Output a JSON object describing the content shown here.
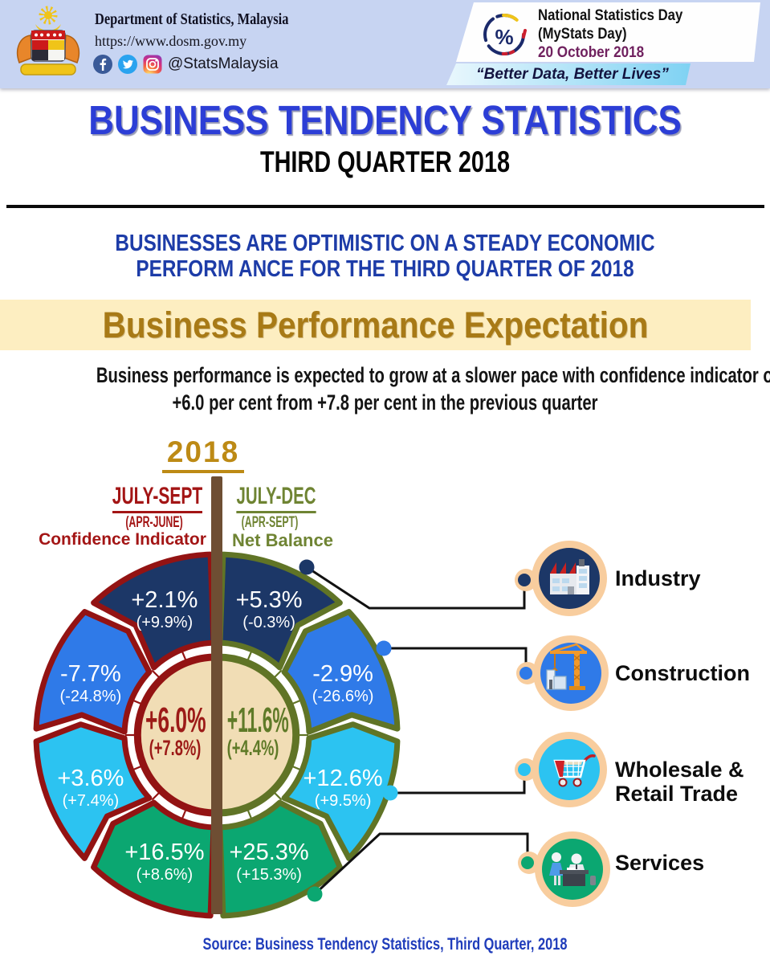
{
  "palette": {
    "header_bg": "#c7d4f2",
    "title_blue": "#2c3ed6",
    "headline_blue": "#1d3ca8",
    "banner_bg": "#fdeec1",
    "banner_gold": "#a87a16",
    "year_gold": "#bd8a15",
    "divider_brown": "#6e4e33",
    "badge_ring_peach": "#f8cd9e",
    "source_blue": "#203dbb"
  },
  "header": {
    "org_name": "Department of Statistics, Malaysia",
    "website": "https://www.dosm.gov.my",
    "social_handle": "@StatsMalaysia",
    "event_name_line1": "National Statistics Day",
    "event_name_line2": "(MyStats Day)",
    "event_date": "20 October 2018",
    "event_slogan": "“Better Data, Better Lives”"
  },
  "title": {
    "main": "BUSINESS TENDENCY STATISTICS",
    "sub": "THIRD QUARTER 2018"
  },
  "headline": {
    "line1": "BUSINESSES ARE OPTIMISTIC ON A STEADY ECONOMIC",
    "line2": "PERFORM ANCE FOR THE THIRD QUARTER OF 2018"
  },
  "section_title": "Business Performance Expectation",
  "summary": {
    "line1": "Business performance is expected to grow at a slower pace with confidence indicator of",
    "line2": "+6.0 per cent from +7.8 per cent in the previous quarter"
  },
  "year": "2018",
  "chart_data": {
    "type": "pie",
    "title": "Business Performance Expectation",
    "halves": {
      "left": {
        "period": "JULY-SEPT",
        "prev_period": "(APR-JUNE)",
        "measure": "Confidence Indicator",
        "center_value": "+6.0%",
        "center_prev": "(+7.8%)",
        "color": "#931313",
        "text_color": "#9c1a17",
        "header_color": "#a31515"
      },
      "right": {
        "period": "JULY-DEC",
        "prev_period": "(APR-SEPT)",
        "measure": "Net Balance",
        "center_value": "+11.6%",
        "center_prev": "(+4.4%)",
        "color": "#607426",
        "text_color": "#5f7a28",
        "header_color": "#6f8433"
      }
    },
    "sectors": [
      {
        "name": "Industry",
        "color": "#1c3767",
        "confidence_indicator": "+2.1%",
        "confidence_indicator_prev": "(+9.9%)",
        "net_balance": "+5.3%",
        "net_balance_prev": "(-0.3%)"
      },
      {
        "name": "Construction",
        "color": "#2f7ae8",
        "confidence_indicator": "-7.7%",
        "confidence_indicator_prev": "(-24.8%)",
        "net_balance": "-2.9%",
        "net_balance_prev": "(-26.6%)"
      },
      {
        "name": "Wholesale & Retail Trade",
        "color": "#2cc3f1",
        "confidence_indicator": "+3.6%",
        "confidence_indicator_prev": "(+7.4%)",
        "net_balance": "+12.6%",
        "net_balance_prev": "(+9.5%)"
      },
      {
        "name": "Services",
        "color": "#0ba771",
        "confidence_indicator": "+16.5%",
        "confidence_indicator_prev": "(+8.6%)",
        "net_balance": "+25.3%",
        "net_balance_prev": "(+15.3%)"
      }
    ]
  },
  "source": "Source: Business Tendency Statistics, Third Quarter, 2018"
}
